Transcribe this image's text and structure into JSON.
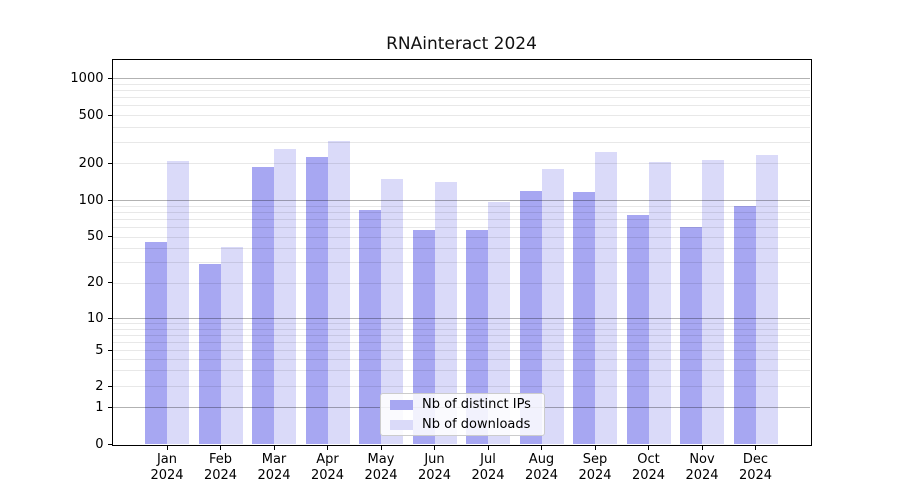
{
  "title": "RNAinteract 2024",
  "colors": {
    "ips_bar": "#a7a7f2",
    "downloads_bar": "#dadaf9",
    "grid_major": "rgba(0,0,0,0.30)",
    "grid_minor": "rgba(0,0,0,0.09)",
    "axis": "#000000",
    "legend_border": "#cccccc"
  },
  "legend": {
    "items": [
      {
        "label": "Nb of distinct IPs",
        "color": "#a7a7f2"
      },
      {
        "label": "Nb of downloads",
        "color": "#dadaf9"
      }
    ]
  },
  "y_axis": {
    "tick_labels": [
      "0",
      "1",
      "2",
      "5",
      "10",
      "20",
      "50",
      "100",
      "200",
      "500",
      "1000"
    ]
  },
  "x_axis": {
    "months": [
      "Jan",
      "Feb",
      "Mar",
      "Apr",
      "May",
      "Jun",
      "Jul",
      "Aug",
      "Sep",
      "Oct",
      "Nov",
      "Dec"
    ],
    "year": "2024"
  },
  "chart_data": {
    "type": "bar",
    "title": "RNAinteract 2024",
    "categories": [
      "Jan 2024",
      "Feb 2024",
      "Mar 2024",
      "Apr 2024",
      "May 2024",
      "Jun 2024",
      "Jul 2024",
      "Aug 2024",
      "Sep 2024",
      "Oct 2024",
      "Nov 2024",
      "Dec 2024"
    ],
    "series": [
      {
        "name": "Nb of distinct IPs",
        "color": "#a7a7f2",
        "values": [
          45,
          29,
          186,
          225,
          83,
          57,
          57,
          119,
          116,
          76,
          60,
          89
        ]
      },
      {
        "name": "Nb of downloads",
        "color": "#dadaf9",
        "values": [
          210,
          41,
          261,
          308,
          148,
          141,
          97,
          180,
          249,
          206,
          212,
          234
        ]
      }
    ],
    "xlabel": "",
    "ylabel": "",
    "yscale": "log-like (log above 1, linear 0 to 1)",
    "yticks": [
      0,
      1,
      2,
      5,
      10,
      20,
      50,
      100,
      200,
      500,
      1000
    ],
    "ylim": [
      0,
      1400
    ],
    "grid": true,
    "grid_major_at": [
      1,
      10,
      100,
      1000
    ],
    "legend_position": "lower center"
  }
}
